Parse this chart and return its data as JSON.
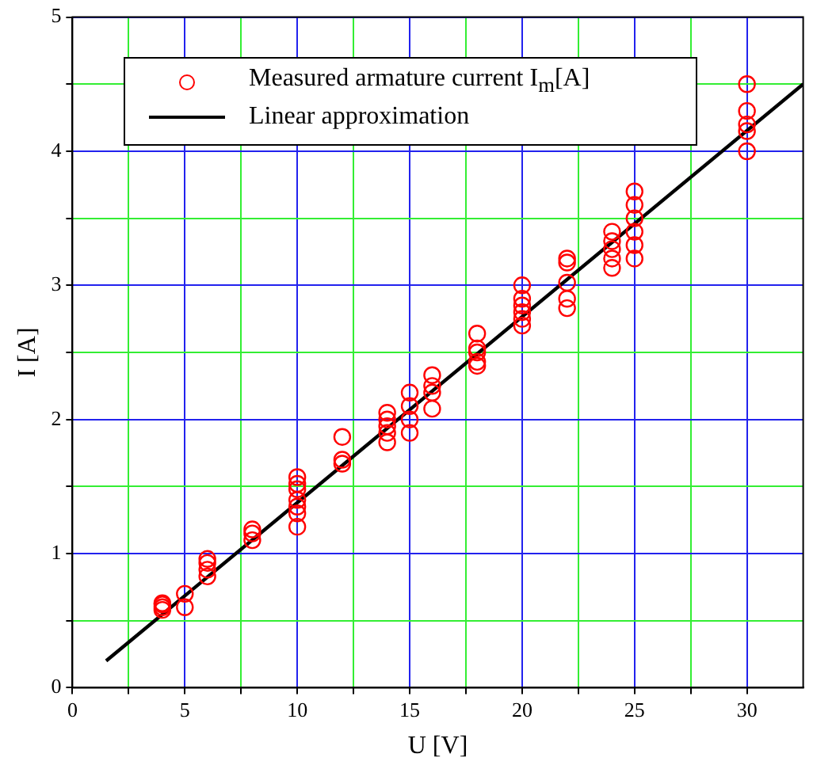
{
  "chart_data": {
    "type": "scatter",
    "xlabel": "U [V]",
    "ylabel": "I [A]",
    "xlim": [
      0,
      32.5
    ],
    "ylim": [
      0,
      5
    ],
    "xticks": [
      0,
      {
        "value": 2.5,
        "label": null
      },
      5,
      {
        "value": 7.5,
        "label": null
      },
      10,
      {
        "value": 12.5,
        "label": null
      },
      15,
      {
        "value": 17.5,
        "label": null
      },
      20,
      {
        "value": 22.5,
        "label": null
      },
      25,
      {
        "value": 27.5,
        "label": null
      },
      30
    ],
    "yticks": [
      0,
      {
        "value": 0.5,
        "label": null
      },
      1,
      {
        "value": 1.5,
        "label": null
      },
      2,
      {
        "value": 2.5,
        "label": null
      },
      3,
      {
        "value": 3.5,
        "label": null
      },
      4,
      {
        "value": 4.5,
        "label": null
      },
      5
    ],
    "grid": true,
    "legend": "top",
    "marker": "circle",
    "series": [
      {
        "name": "Measured armature current I$_{m}$[A]",
        "color": "#ff0000",
        "x": [
          4,
          4,
          4,
          4,
          5,
          5,
          6,
          6,
          6,
          6,
          8,
          8,
          8,
          10,
          10,
          10,
          10,
          10,
          10,
          10,
          12,
          12,
          12,
          14,
          14,
          14,
          14,
          14,
          15,
          15,
          15,
          15,
          16,
          16,
          16,
          16,
          18,
          18,
          18,
          18,
          18,
          20,
          20,
          20,
          20,
          20,
          20,
          22,
          22,
          22,
          22,
          22,
          24,
          24,
          24,
          24,
          24,
          25,
          25,
          25,
          25,
          25,
          25,
          30,
          30,
          30,
          30,
          30
        ],
        "values": [
          0.58,
          0.6,
          0.62,
          0.63,
          0.6,
          0.7,
          0.83,
          0.88,
          0.93,
          0.96,
          1.1,
          1.15,
          1.18,
          1.2,
          1.3,
          1.35,
          1.4,
          1.48,
          1.52,
          1.57,
          1.67,
          1.7,
          1.87,
          1.83,
          1.9,
          1.95,
          2.0,
          2.05,
          1.9,
          2.0,
          2.1,
          2.2,
          2.08,
          2.2,
          2.25,
          2.33,
          2.4,
          2.43,
          2.5,
          2.53,
          2.64,
          2.7,
          2.75,
          2.8,
          2.85,
          2.9,
          3.0,
          2.83,
          2.9,
          3.02,
          3.17,
          3.2,
          3.13,
          3.2,
          3.27,
          3.33,
          3.4,
          3.2,
          3.3,
          3.4,
          3.5,
          3.6,
          3.7,
          4.0,
          4.15,
          4.2,
          4.3,
          4.5
        ]
      },
      {
        "name": "Linear approximation",
        "color": "#000000",
        "type": "line",
        "marker": "none",
        "line_style": "solid",
        "x": [
          1.5,
          32.5
        ],
        "values": [
          0.2,
          4.5
        ]
      }
    ]
  }
}
